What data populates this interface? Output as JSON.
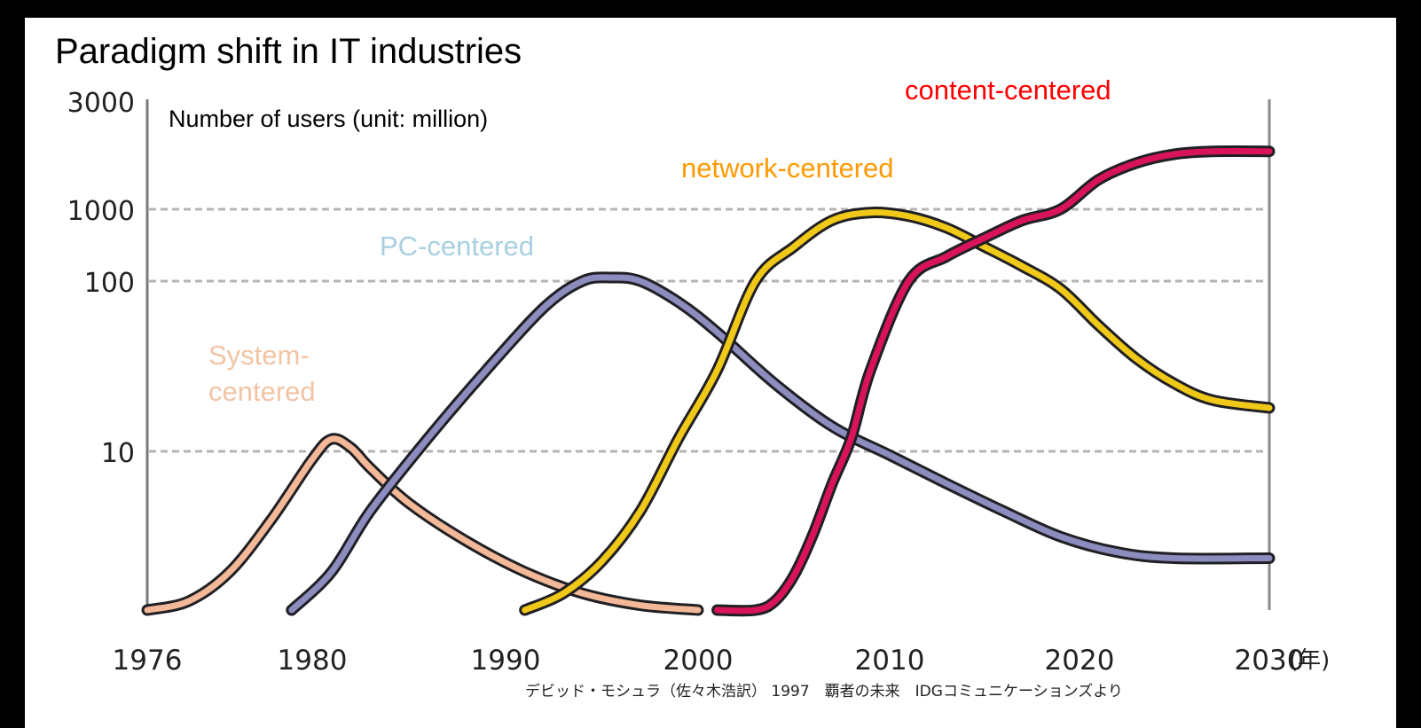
{
  "slide": {
    "title": "Paradigm shift in IT industries"
  },
  "chart_data": {
    "type": "line",
    "title": "Paradigm shift in IT industries",
    "ylabel": "Number of users (unit: million)",
    "xlabel": "",
    "x_unit": "(年)",
    "y_scale": "log",
    "ylim": [
      1.2,
      3000
    ],
    "xlim": [
      1976,
      2030
    ],
    "x_ticks": [
      1976,
      1980,
      1990,
      2000,
      2010,
      2020,
      2030
    ],
    "y_ticks": [
      {
        "value": 10,
        "label": "10",
        "grid": true
      },
      {
        "value": 100,
        "label": "100",
        "grid": true
      },
      {
        "value": 1000,
        "label": "1000",
        "grid": true
      },
      {
        "value": 3000,
        "label": "3000",
        "grid": false
      }
    ],
    "grid": "horizontal dashed at 10, 100, 1000",
    "series": [
      {
        "name": "System-\ncentered",
        "color": "#f2c4a4",
        "stroke": "#f2b897",
        "x": [
          1976,
          1977,
          1978,
          1979,
          1980,
          1981,
          1982,
          1983,
          1985,
          1988,
          1991,
          1994,
          1997,
          2000
        ],
        "y": [
          1.2,
          1.35,
          2.0,
          4.0,
          9.0,
          11.8,
          10.5,
          8.0,
          5.0,
          3.0,
          2.0,
          1.5,
          1.28,
          1.2
        ]
      },
      {
        "name": "PC-centered",
        "color": "#a8d0e0",
        "stroke": "#8c8cbe",
        "x": [
          1979.5,
          1981,
          1983,
          1986,
          1989,
          1992,
          1994,
          1995.5,
          1997,
          1999,
          2001,
          2004,
          2007,
          2010,
          2013,
          2016,
          2019,
          2022,
          2025,
          2030
        ],
        "y": [
          1.2,
          2.0,
          4.5,
          12,
          30,
          70,
          100,
          112,
          100,
          75,
          50,
          25,
          14,
          9.5,
          6.5,
          4.5,
          3.2,
          2.6,
          2.4,
          2.4
        ]
      },
      {
        "name": "network-centered",
        "color": "#ff9900",
        "stroke": "#f0c818",
        "x": [
          1991,
          1993,
          1995,
          1997,
          1999,
          2001,
          2003,
          2005,
          2007,
          2009,
          2011,
          2013,
          2015,
          2017,
          2019,
          2021,
          2023,
          2025,
          2027,
          2030
        ],
        "y": [
          1.2,
          1.5,
          2.3,
          4.5,
          12,
          30,
          100,
          300,
          700,
          900,
          800,
          550,
          300,
          160,
          90,
          55,
          35,
          25,
          20,
          18
        ]
      },
      {
        "name": "content-centered",
        "color": "#ff0000",
        "stroke": "#d8135a",
        "x": [
          2001,
          2003,
          2004,
          2005,
          2006,
          2007,
          2008,
          2009,
          2011,
          2013,
          2015,
          2017,
          2019,
          2021,
          2023,
          2025,
          2027,
          2030
        ],
        "y": [
          1.2,
          1.2,
          1.35,
          1.9,
          3.3,
          6.5,
          12,
          30,
          100,
          220,
          400,
          700,
          1000,
          1350,
          1600,
          1750,
          1800,
          1800
        ]
      }
    ],
    "ylabel_color": "#000000"
  },
  "source_note": "デビッド・モシュラ（佐々木浩訳） 1997　覇者の未来　IDGコミュニケーションズより"
}
